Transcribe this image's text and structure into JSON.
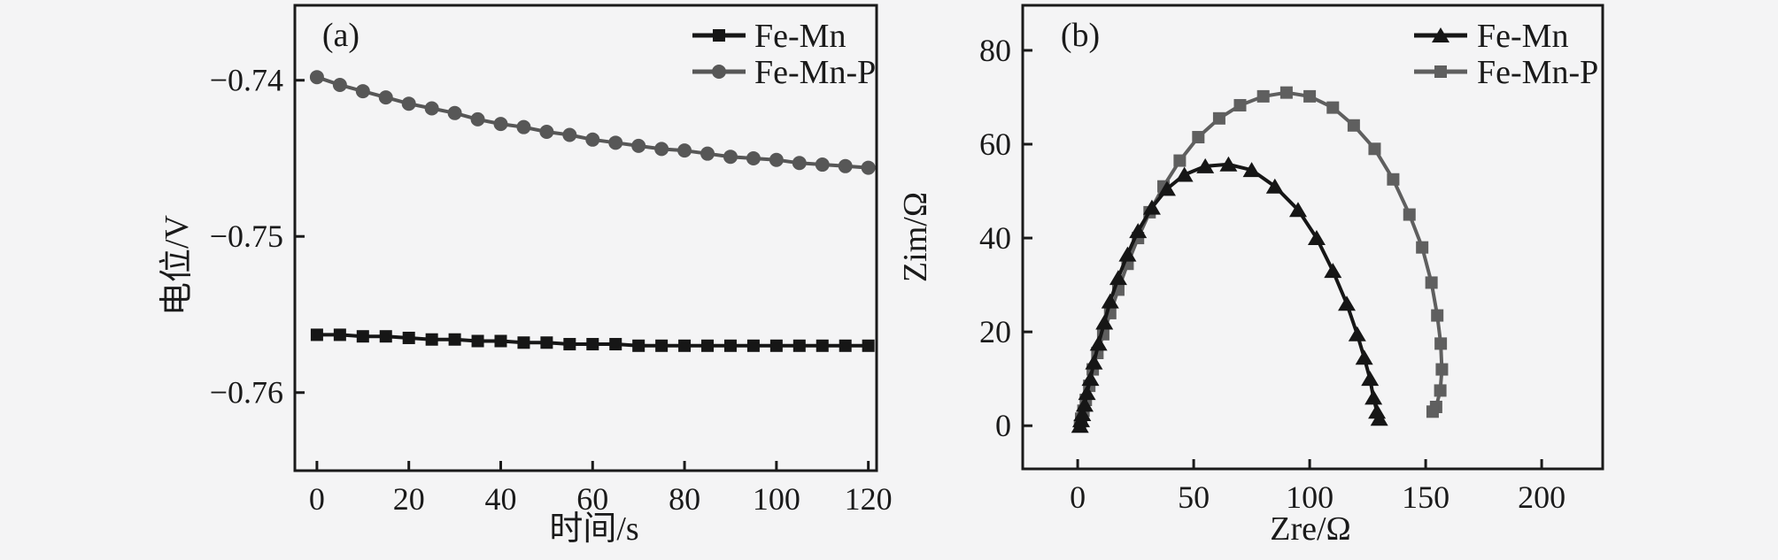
{
  "figure": {
    "background": "#f4f4f5",
    "frame_color": "#1a1a1a"
  },
  "chart_data": [
    {
      "id": "a",
      "type": "line",
      "panel_label": "(a)",
      "xlabel": "时间/s",
      "ylabel": "电位/V",
      "xlim": [
        -4.8,
        121.8
      ],
      "ylim": [
        -0.765,
        -0.7352
      ],
      "xticks": [
        0,
        20,
        40,
        60,
        80,
        100,
        120
      ],
      "xtick_labels": [
        "0",
        "20",
        "40",
        "60",
        "80",
        "100",
        "120"
      ],
      "yticks": [
        -0.74,
        -0.75,
        -0.76
      ],
      "ytick_labels": [
        "−0.74",
        "−0.75",
        "−0.76"
      ],
      "grid": false,
      "legend_position": "top-right-inside",
      "series": [
        {
          "name": "Fe-Mn",
          "marker": "square",
          "color": "#161616",
          "points": [
            [
              0,
              -0.7563
            ],
            [
              5,
              -0.7563
            ],
            [
              10,
              -0.7564
            ],
            [
              15,
              -0.7564
            ],
            [
              20,
              -0.7565
            ],
            [
              25,
              -0.7566
            ],
            [
              30,
              -0.7566
            ],
            [
              35,
              -0.7567
            ],
            [
              40,
              -0.7567
            ],
            [
              45,
              -0.7568
            ],
            [
              50,
              -0.7568
            ],
            [
              55,
              -0.7569
            ],
            [
              60,
              -0.7569
            ],
            [
              65,
              -0.7569
            ],
            [
              70,
              -0.757
            ],
            [
              75,
              -0.757
            ],
            [
              80,
              -0.757
            ],
            [
              85,
              -0.757
            ],
            [
              90,
              -0.757
            ],
            [
              95,
              -0.757
            ],
            [
              100,
              -0.757
            ],
            [
              105,
              -0.757
            ],
            [
              110,
              -0.757
            ],
            [
              115,
              -0.757
            ],
            [
              120,
              -0.757
            ]
          ]
        },
        {
          "name": "Fe-Mn-P",
          "marker": "circle",
          "color": "#575757",
          "points": [
            [
              0,
              -0.7398
            ],
            [
              5,
              -0.7403
            ],
            [
              10,
              -0.7407
            ],
            [
              15,
              -0.7411
            ],
            [
              20,
              -0.7415
            ],
            [
              25,
              -0.7418
            ],
            [
              30,
              -0.7421
            ],
            [
              35,
              -0.7425
            ],
            [
              40,
              -0.7428
            ],
            [
              45,
              -0.743
            ],
            [
              50,
              -0.7433
            ],
            [
              55,
              -0.7435
            ],
            [
              60,
              -0.7438
            ],
            [
              65,
              -0.744
            ],
            [
              70,
              -0.7442
            ],
            [
              75,
              -0.7444
            ],
            [
              80,
              -0.7445
            ],
            [
              85,
              -0.7447
            ],
            [
              90,
              -0.7449
            ],
            [
              95,
              -0.745
            ],
            [
              100,
              -0.7451
            ],
            [
              105,
              -0.7453
            ],
            [
              110,
              -0.7454
            ],
            [
              115,
              -0.7455
            ],
            [
              120,
              -0.7456
            ]
          ]
        }
      ]
    },
    {
      "id": "b",
      "type": "line",
      "panel_label": "(b)",
      "xlabel": "Zre/Ω",
      "ylabel": "Zim/Ω",
      "xlim": [
        -23.7,
        226.3
      ],
      "ylim": [
        -9.2,
        89.6
      ],
      "xticks": [
        0,
        50,
        100,
        150,
        200
      ],
      "xtick_labels": [
        "0",
        "50",
        "100",
        "150",
        "200"
      ],
      "yticks": [
        0,
        20,
        40,
        60,
        80
      ],
      "ytick_labels": [
        "0",
        "20",
        "40",
        "60",
        "80"
      ],
      "grid": false,
      "legend_position": "top-right-inside",
      "series": [
        {
          "name": "Fe-Mn",
          "marker": "triangle",
          "color": "#161616",
          "points": [
            [
              1,
              0
            ],
            [
              1.5,
              1.2
            ],
            [
              2,
              2.5
            ],
            [
              3,
              4.5
            ],
            [
              4,
              7
            ],
            [
              5.5,
              10
            ],
            [
              7,
              13.5
            ],
            [
              9,
              17.5
            ],
            [
              11.5,
              22
            ],
            [
              14,
              26.5
            ],
            [
              17.5,
              31.5
            ],
            [
              21.5,
              36.5
            ],
            [
              26,
              41.5
            ],
            [
              32,
              46.5
            ],
            [
              38.5,
              50.5
            ],
            [
              46,
              53.5
            ],
            [
              55,
              55.3
            ],
            [
              65,
              55.7
            ],
            [
              75,
              54.5
            ],
            [
              85,
              51
            ],
            [
              95,
              46
            ],
            [
              103,
              40
            ],
            [
              110,
              33
            ],
            [
              116,
              26
            ],
            [
              120.5,
              19.5
            ],
            [
              123.5,
              14.5
            ],
            [
              126,
              10
            ],
            [
              127.5,
              6
            ],
            [
              129,
              3
            ],
            [
              130,
              1.5
            ]
          ]
        },
        {
          "name": "Fe-Mn-P",
          "marker": "square",
          "color": "#5f5f5f",
          "points": [
            [
              1,
              0
            ],
            [
              1.5,
              1.5
            ],
            [
              2.5,
              3.2
            ],
            [
              3.5,
              5.5
            ],
            [
              5,
              8.5
            ],
            [
              6.5,
              12
            ],
            [
              8.5,
              15.5
            ],
            [
              11,
              19.5
            ],
            [
              14,
              24
            ],
            [
              17.5,
              29
            ],
            [
              21.5,
              34.5
            ],
            [
              26,
              40
            ],
            [
              31,
              45.5
            ],
            [
              37,
              51
            ],
            [
              44,
              56.5
            ],
            [
              52,
              61.5
            ],
            [
              61,
              65.5
            ],
            [
              70,
              68.3
            ],
            [
              80,
              70.2
            ],
            [
              90,
              71
            ],
            [
              100,
              70.2
            ],
            [
              110,
              67.8
            ],
            [
              119,
              64
            ],
            [
              128,
              59
            ],
            [
              136,
              52.5
            ],
            [
              143,
              45
            ],
            [
              148.5,
              38
            ],
            [
              152.5,
              30.5
            ],
            [
              155,
              23.5
            ],
            [
              156.5,
              17.5
            ],
            [
              157,
              12
            ],
            [
              156.3,
              7.5
            ],
            [
              154.5,
              4
            ],
            [
              153,
              3
            ]
          ]
        }
      ]
    }
  ]
}
